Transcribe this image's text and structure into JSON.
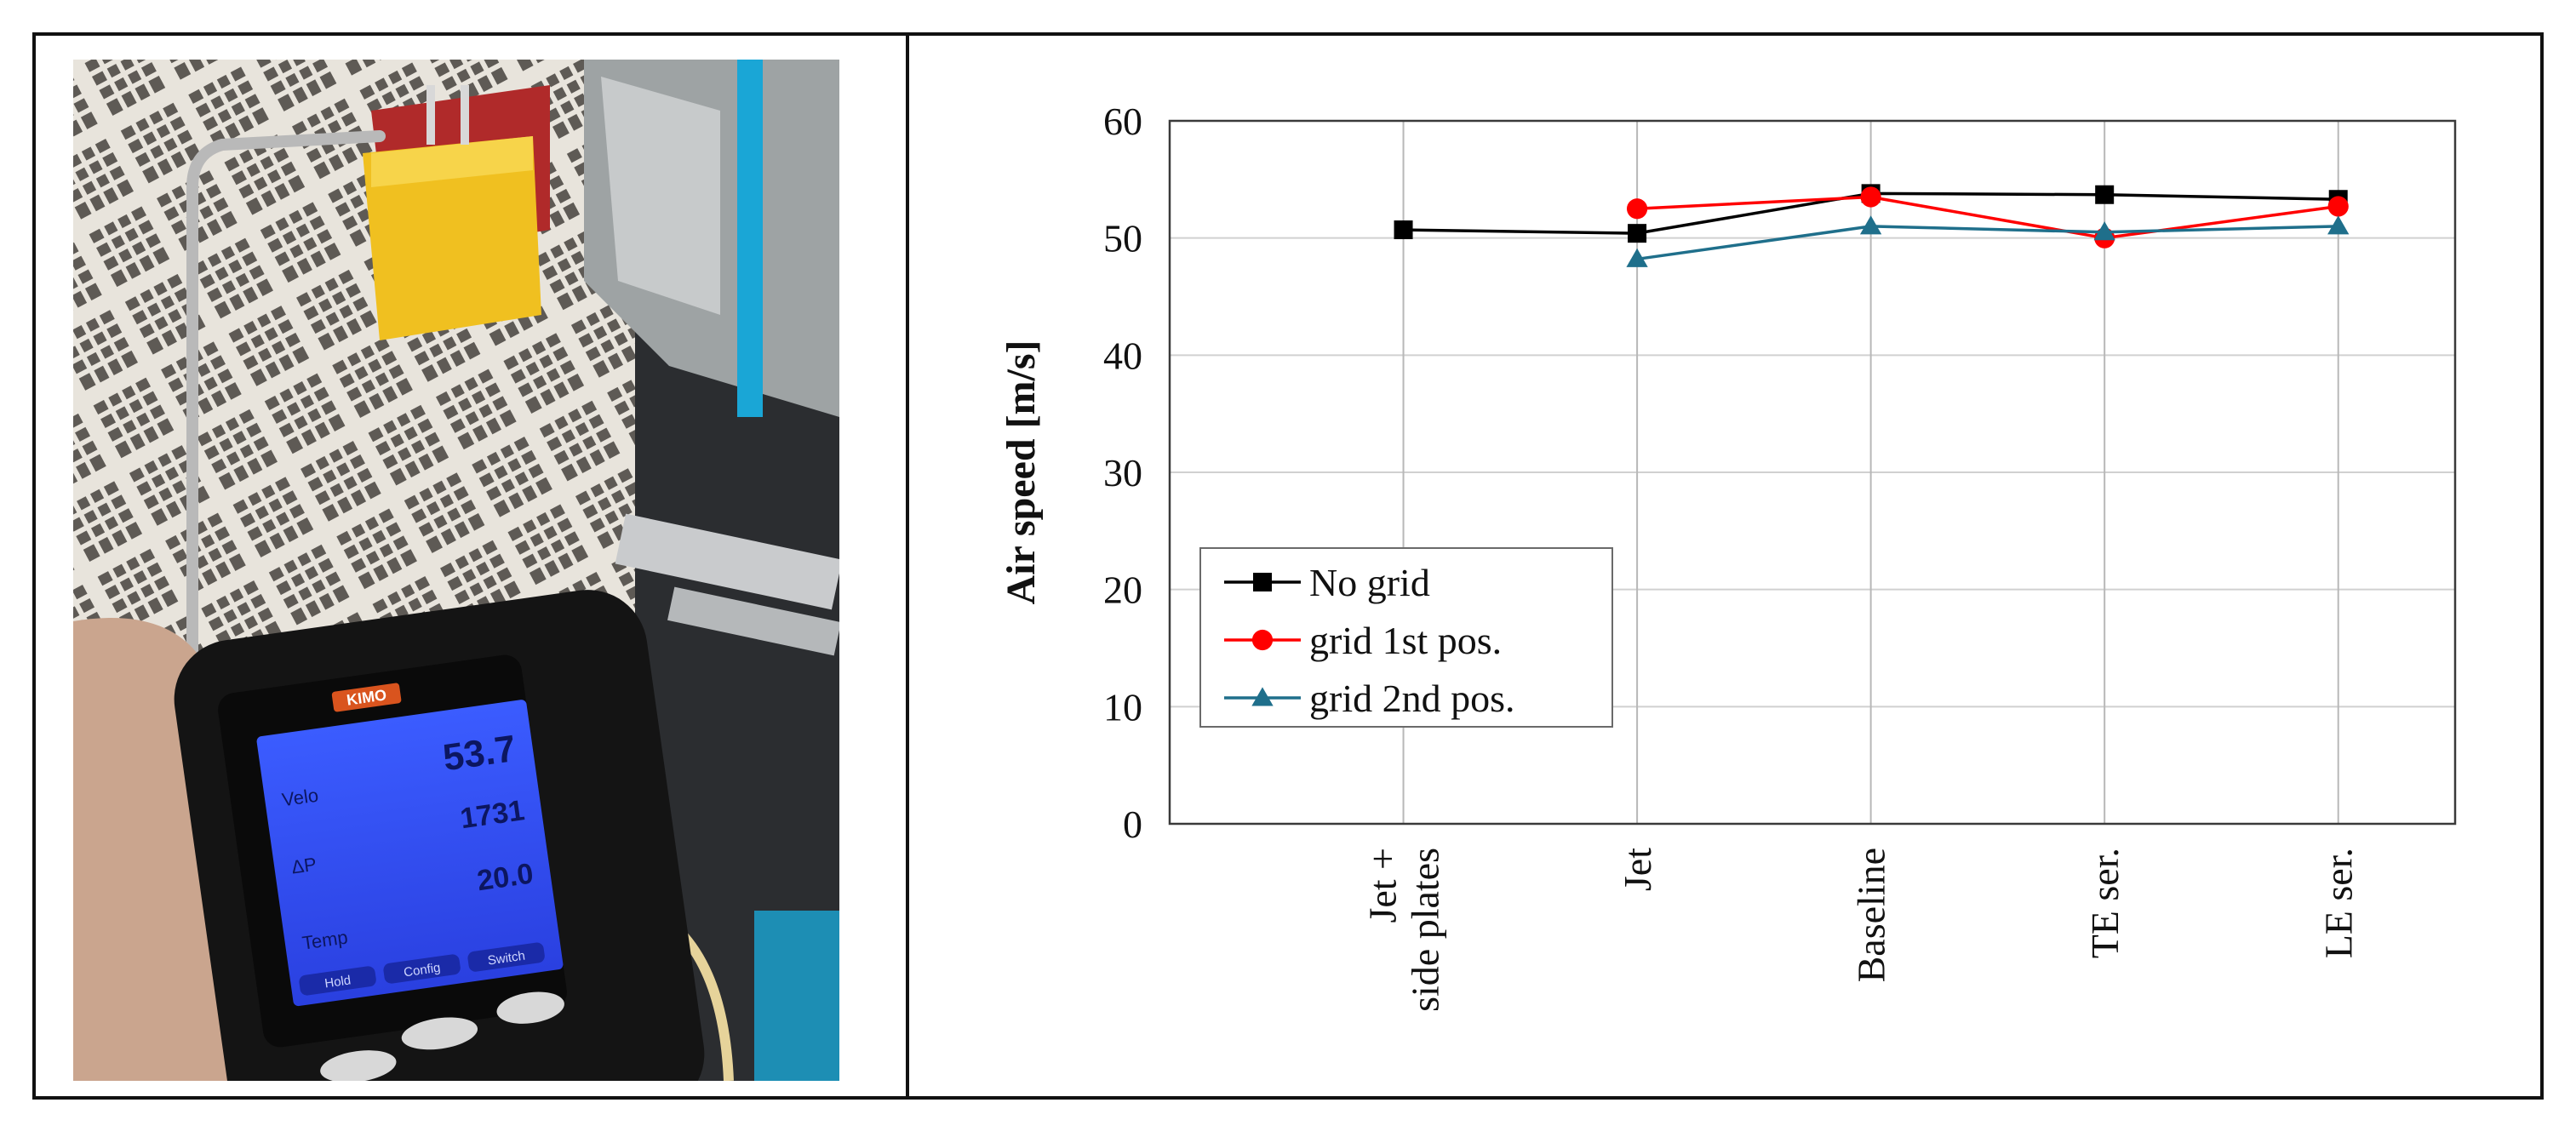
{
  "photo": {
    "meter_brand": "KIMO",
    "readings": [
      {
        "label": "Velo",
        "value": "53.7"
      },
      {
        "label": "ΔP",
        "value": "1731"
      },
      {
        "label": "Temp",
        "value": "20.0"
      }
    ],
    "softkeys": [
      "Hold",
      "Config",
      "Switch"
    ]
  },
  "chart_data": {
    "type": "line",
    "title": "",
    "xlabel": "",
    "ylabel": "Air speed [m/s]",
    "ylim": [
      0,
      60
    ],
    "yticks": [
      0,
      10,
      20,
      30,
      40,
      50,
      60
    ],
    "categories": [
      [
        "Jet +",
        "side plates"
      ],
      [
        "Jet"
      ],
      [
        "Baseline"
      ],
      [
        "TE ser."
      ],
      [
        "LE ser."
      ]
    ],
    "grid": true,
    "legend_position": "lower-left",
    "series": [
      {
        "name": "No grid",
        "color": "#000000",
        "marker": "square",
        "values": [
          50.7,
          50.4,
          53.8,
          53.7,
          53.3
        ]
      },
      {
        "name": "grid 1st pos.",
        "color": "#ff0000",
        "marker": "circle",
        "values": [
          null,
          52.5,
          53.5,
          50.0,
          52.7
        ]
      },
      {
        "name": "grid 2nd pos.",
        "color": "#1f6f8b",
        "marker": "triangle",
        "values": [
          null,
          48.2,
          51.0,
          50.5,
          51.0
        ]
      }
    ]
  }
}
